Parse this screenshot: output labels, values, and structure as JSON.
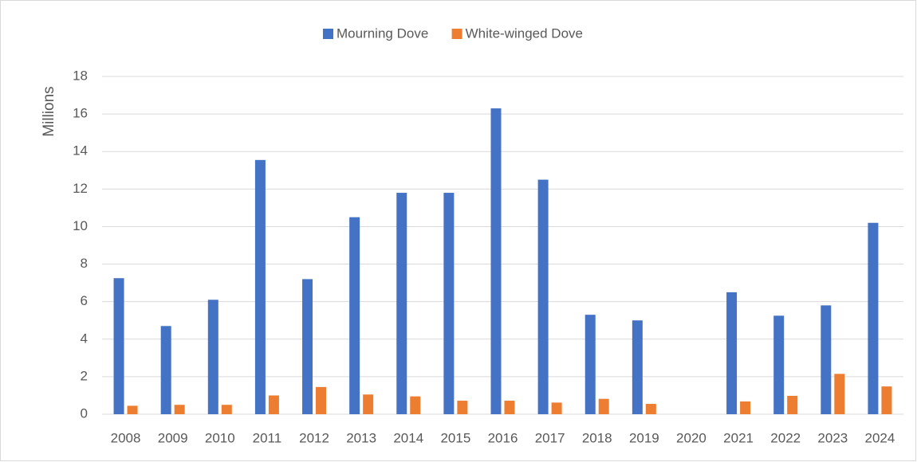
{
  "chart_data": {
    "type": "bar",
    "y_label": "Millions",
    "categories": [
      "2008",
      "2009",
      "2010",
      "2011",
      "2012",
      "2013",
      "2014",
      "2015",
      "2016",
      "2017",
      "2018",
      "2019",
      "2020",
      "2021",
      "2022",
      "2023",
      "2024"
    ],
    "series": [
      {
        "name": "Mourning Dove",
        "color": "#4472c4",
        "values": [
          7.25,
          4.7,
          6.1,
          13.55,
          7.2,
          10.5,
          11.8,
          11.8,
          16.3,
          12.5,
          5.3,
          5.0,
          null,
          6.5,
          5.25,
          5.8,
          10.2
        ]
      },
      {
        "name": "White-winged Dove",
        "color": "#ed7d31",
        "values": [
          0.45,
          0.5,
          0.5,
          1.0,
          1.45,
          1.05,
          0.95,
          0.72,
          0.72,
          0.62,
          0.82,
          0.55,
          null,
          0.68,
          0.98,
          2.15,
          1.48
        ]
      }
    ],
    "ylim": [
      0,
      18
    ],
    "yticks": [
      0,
      2,
      4,
      6,
      8,
      10,
      12,
      14,
      16,
      18
    ],
    "grid": true,
    "legend": "top"
  }
}
